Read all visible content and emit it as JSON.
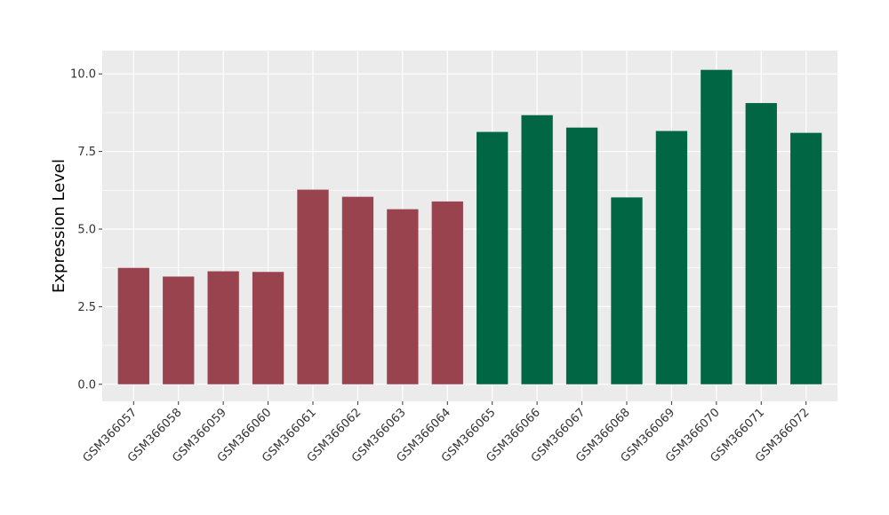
{
  "chart_data": {
    "type": "bar",
    "title": "",
    "xlabel": "",
    "ylabel": "Expression Level",
    "ylim": [
      -0.55,
      10.75
    ],
    "yticks": [
      0.0,
      2.5,
      5.0,
      7.5,
      10.0
    ],
    "ytick_labels": [
      "0.0",
      "2.5",
      "5.0",
      "7.5",
      "10.0"
    ],
    "grid": true,
    "legend": "none",
    "colors": {
      "panel_background": "#ebebeb",
      "grid_major": "#ffffff",
      "group_1": "#99434f",
      "group_2": "#006644"
    },
    "categories": [
      "GSM366057",
      "GSM366058",
      "GSM366059",
      "GSM366060",
      "GSM366061",
      "GSM366062",
      "GSM366063",
      "GSM366064",
      "GSM366065",
      "GSM366066",
      "GSM366067",
      "GSM366068",
      "GSM366069",
      "GSM366070",
      "GSM366071",
      "GSM366072"
    ],
    "values": [
      3.75,
      3.47,
      3.64,
      3.62,
      6.27,
      6.04,
      5.64,
      5.89,
      8.13,
      8.67,
      8.27,
      6.02,
      8.16,
      10.13,
      9.06,
      8.1
    ],
    "bar_groups": [
      1,
      1,
      1,
      1,
      1,
      1,
      1,
      1,
      2,
      2,
      2,
      2,
      2,
      2,
      2,
      2
    ]
  }
}
